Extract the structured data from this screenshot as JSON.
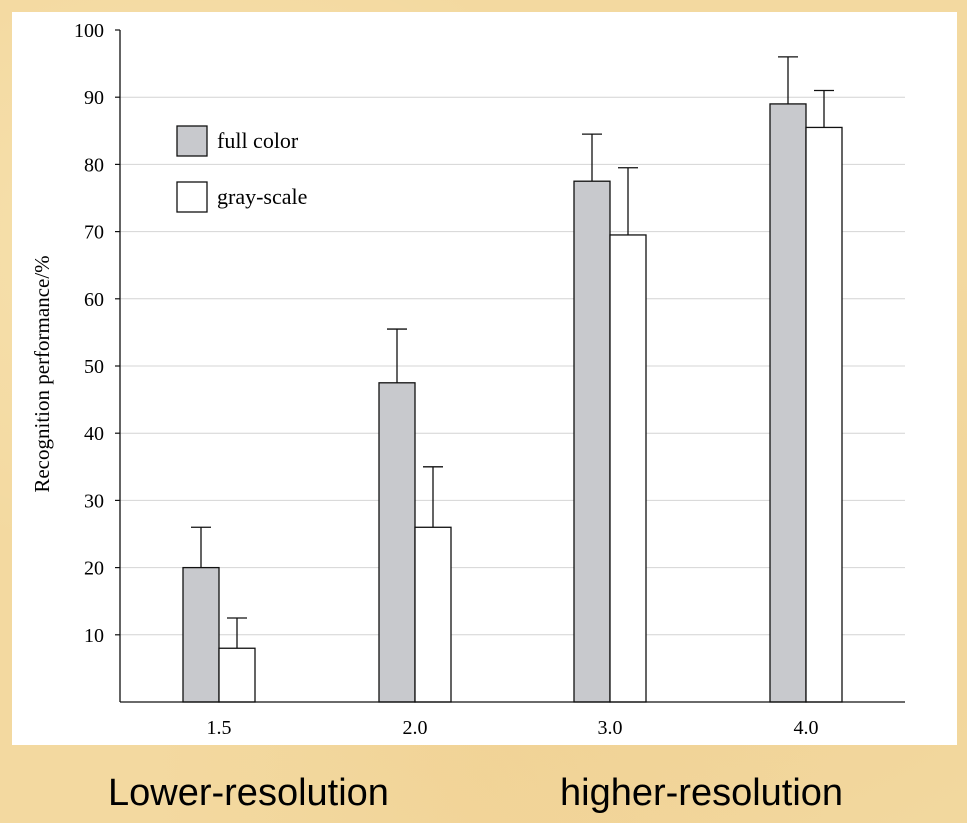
{
  "chart_data": {
    "type": "bar",
    "categories": [
      "1.5",
      "2.0",
      "3.0",
      "4.0"
    ],
    "series": [
      {
        "name": "full color",
        "values": [
          20,
          47.5,
          77.5,
          89
        ],
        "error": [
          6,
          8,
          7,
          7
        ],
        "color": "#c8c9cd"
      },
      {
        "name": "gray-scale",
        "values": [
          8,
          26,
          69.5,
          85.5
        ],
        "error": [
          4.5,
          9,
          10,
          5.5
        ],
        "color": "#ffffff"
      }
    ],
    "title": "",
    "xlabel": "",
    "ylabel": "Recognition performance/%",
    "ylim": [
      0,
      100
    ],
    "yticks": [
      10,
      20,
      30,
      40,
      50,
      60,
      70,
      80,
      90,
      100
    ],
    "grid": true,
    "legend_position": "top-left"
  },
  "captions": {
    "left": "Lower-resolution",
    "right": "higher-resolution"
  }
}
